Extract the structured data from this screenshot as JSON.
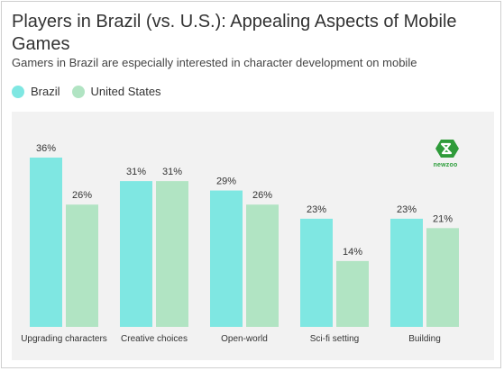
{
  "title": "Players in Brazil (vs. U.S.): Appealing Aspects of Mobile Games",
  "subtitle": "Gamers in Brazil are especially interested in character development on mobile",
  "logo_text": "newzoo",
  "colors": {
    "brazil": "#7fe7e2",
    "united_states": "#b1e4c3",
    "panel": "#f2f2f2"
  },
  "legend": [
    {
      "name": "Brazil",
      "color": "#7fe7e2"
    },
    {
      "name": "United States",
      "color": "#b1e4c3"
    }
  ],
  "chart_data": {
    "type": "bar",
    "title": "Players in Brazil (vs. U.S.): Appealing Aspects of Mobile Games",
    "subtitle": "Gamers in Brazil are especially interested in character development on mobile",
    "categories": [
      "Upgrading characters",
      "Creative choices",
      "Open-world",
      "Sci-fi setting",
      "Building"
    ],
    "series": [
      {
        "name": "Brazil",
        "values": [
          36,
          31,
          29,
          23,
          23
        ],
        "color": "#7fe7e2"
      },
      {
        "name": "United States",
        "values": [
          26,
          31,
          26,
          14,
          21
        ],
        "color": "#b1e4c3"
      }
    ],
    "value_suffix": "%",
    "ylim": [
      0,
      36
    ],
    "grid": false,
    "legend_position": "top-left"
  }
}
